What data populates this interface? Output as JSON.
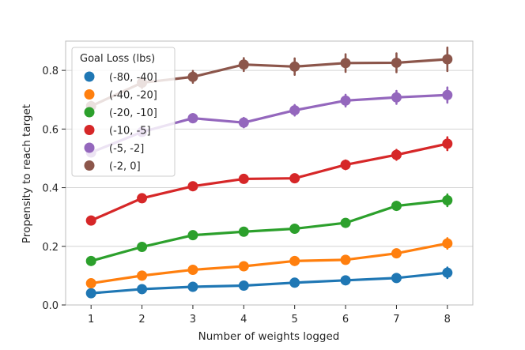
{
  "chart_data": {
    "type": "line",
    "title": "",
    "xlabel": "Number of weights logged",
    "ylabel": "Propensity to reach target",
    "categories": [
      "1",
      "2",
      "3",
      "4",
      "5",
      "6",
      "7",
      "8"
    ],
    "ylim": [
      0.0,
      0.9
    ],
    "yticks": [
      0.0,
      0.2,
      0.4,
      0.6,
      0.8
    ],
    "ytick_labels": [
      "0.0",
      "0.2",
      "0.4",
      "0.6",
      "0.8"
    ],
    "grid": "horizontal",
    "legend": {
      "title": "Goal Loss (lbs)",
      "placement": "top-left"
    },
    "series": [
      {
        "name": "(-80, -40]",
        "color": "#1f77b4",
        "values": [
          0.04,
          0.054,
          0.062,
          0.066,
          0.076,
          0.084,
          0.092,
          0.11
        ],
        "err": [
          0.005,
          0.006,
          0.007,
          0.008,
          0.009,
          0.01,
          0.011,
          0.018
        ]
      },
      {
        "name": "(-40, -20]",
        "color": "#ff7f0e",
        "values": [
          0.074,
          0.1,
          0.12,
          0.132,
          0.15,
          0.154,
          0.176,
          0.21
        ],
        "err": [
          0.006,
          0.007,
          0.008,
          0.009,
          0.01,
          0.011,
          0.012,
          0.018
        ]
      },
      {
        "name": "(-20, -10]",
        "color": "#2ca02c",
        "values": [
          0.15,
          0.198,
          0.238,
          0.25,
          0.26,
          0.28,
          0.338,
          0.357
        ],
        "err": [
          0.007,
          0.008,
          0.009,
          0.01,
          0.011,
          0.012,
          0.014,
          0.02
        ]
      },
      {
        "name": "(-10, -5]",
        "color": "#d62728",
        "values": [
          0.288,
          0.364,
          0.405,
          0.43,
          0.432,
          0.478,
          0.512,
          0.55
        ],
        "err": [
          0.008,
          0.01,
          0.011,
          0.012,
          0.013,
          0.015,
          0.017,
          0.022
        ]
      },
      {
        "name": "(-5, -2]",
        "color": "#9467bd",
        "values": [
          0.52,
          0.59,
          0.637,
          0.622,
          0.664,
          0.697,
          0.708,
          0.716
        ],
        "err": [
          0.012,
          0.013,
          0.014,
          0.016,
          0.018,
          0.02,
          0.022,
          0.026
        ]
      },
      {
        "name": "(-2, 0]",
        "color": "#8c564b",
        "values": [
          0.678,
          0.758,
          0.778,
          0.82,
          0.813,
          0.825,
          0.826,
          0.838
        ],
        "err": [
          0.015,
          0.018,
          0.02,
          0.022,
          0.028,
          0.03,
          0.032,
          0.04
        ]
      }
    ]
  }
}
